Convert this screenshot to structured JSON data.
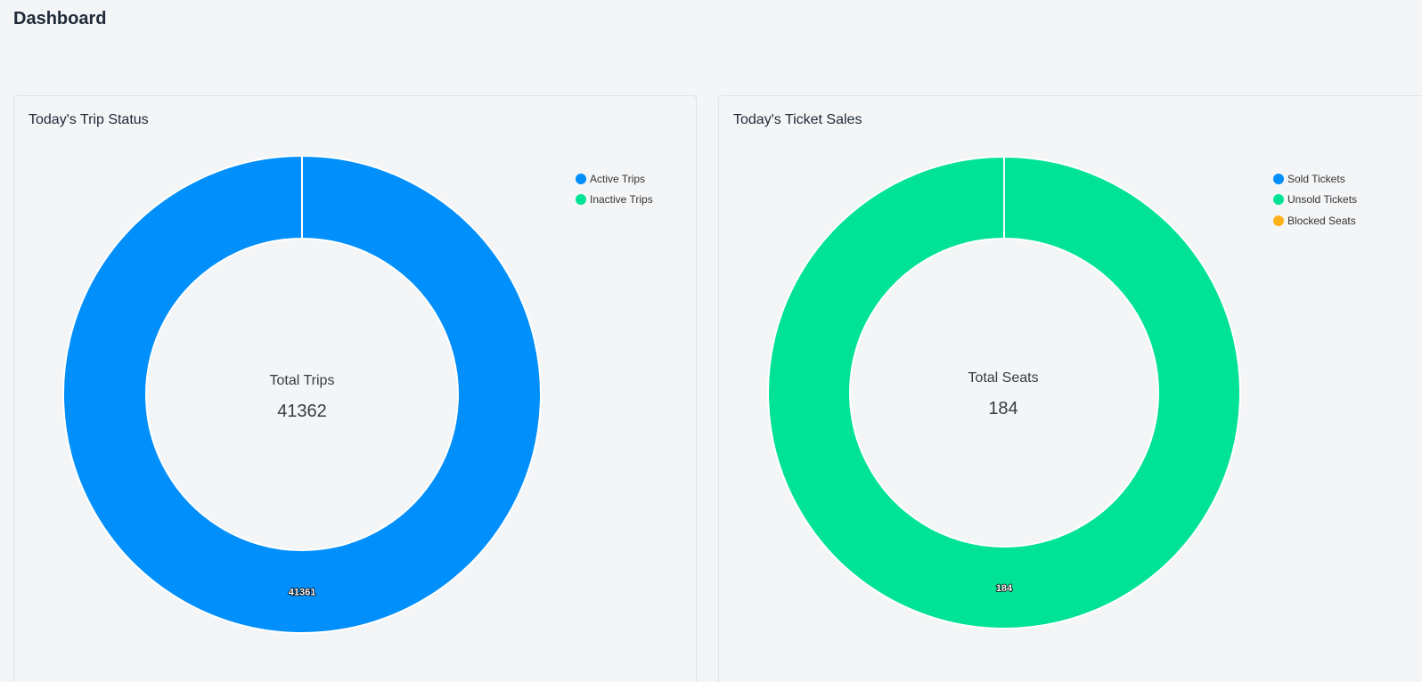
{
  "page": {
    "title": "Dashboard"
  },
  "trip_card": {
    "title": "Today's Trip Status",
    "center_label": "Total Trips",
    "center_value": "41362",
    "legend": [
      {
        "label": "Active Trips",
        "color": "#008ffb"
      },
      {
        "label": "Inactive Trips",
        "color": "#00e396"
      }
    ]
  },
  "ticket_card": {
    "title": "Today's Ticket Sales",
    "center_label": "Total Seats",
    "center_value": "184",
    "legend": [
      {
        "label": "Sold Tickets",
        "color": "#008ffb"
      },
      {
        "label": "Unsold Tickets",
        "color": "#00e396"
      },
      {
        "label": "Blocked Seats",
        "color": "#feb019"
      }
    ]
  },
  "chart_data": [
    {
      "type": "pie",
      "subtype": "donut",
      "title": "Today's Trip Status",
      "categories": [
        "Active Trips",
        "Inactive Trips"
      ],
      "values": [
        41361,
        1
      ],
      "colors": [
        "#008ffb",
        "#00e396"
      ],
      "data_labels": [
        "41361"
      ],
      "total_label": "Total Trips",
      "total": 41362,
      "legend_position": "top-right"
    },
    {
      "type": "pie",
      "subtype": "donut",
      "title": "Today's Ticket Sales",
      "categories": [
        "Sold Tickets",
        "Unsold Tickets",
        "Blocked Seats"
      ],
      "values": [
        0,
        184,
        0
      ],
      "colors": [
        "#008ffb",
        "#00e396",
        "#feb019"
      ],
      "data_labels": [
        "184"
      ],
      "total_label": "Total Seats",
      "total": 184,
      "legend_position": "top-right"
    }
  ]
}
